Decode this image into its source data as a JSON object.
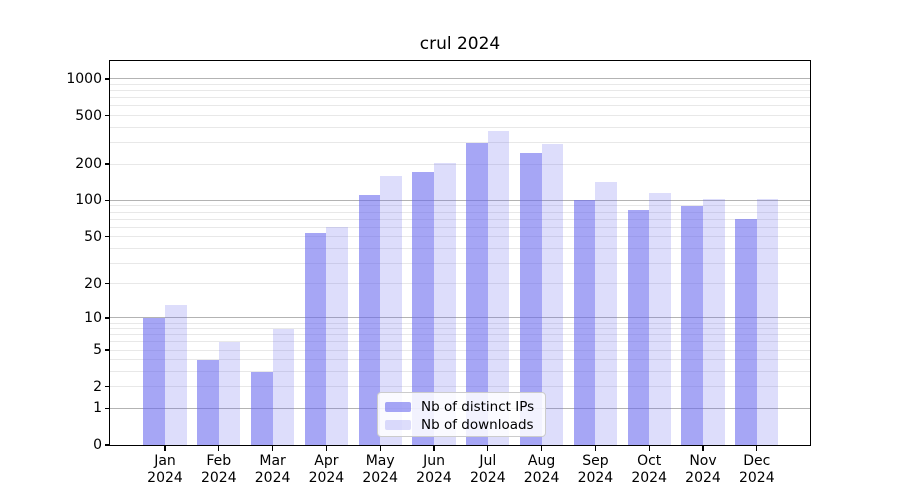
{
  "chart_data": {
    "type": "bar",
    "title": "crul 2024",
    "year": "2024",
    "categories": [
      "Jan",
      "Feb",
      "Mar",
      "Apr",
      "May",
      "Jun",
      "Jul",
      "Aug",
      "Sep",
      "Oct",
      "Nov",
      "Dec"
    ],
    "series": [
      {
        "name": "Nb of distinct IPs",
        "color": "rgba(102,102,238,0.58)",
        "values": [
          10,
          4,
          3,
          54,
          112,
          173,
          300,
          248,
          100,
          84,
          90,
          70
        ]
      },
      {
        "name": "Nb of downloads",
        "color": "rgba(102,102,238,0.22)",
        "values": [
          13,
          6,
          8,
          60,
          160,
          204,
          373,
          294,
          142,
          116,
          103,
          103
        ]
      }
    ],
    "y_ticks": [
      0,
      1,
      2,
      5,
      10,
      20,
      50,
      100,
      200,
      500,
      1000
    ],
    "y_scale": "log10(value+1)",
    "ylim": [
      0,
      1400
    ],
    "grid": true,
    "legend_position": "lower-center",
    "colors": {
      "grid_major": "#b3b3b3",
      "grid_minor": "#e8e8e8",
      "axis": "#000000",
      "background": "#ffffff"
    }
  }
}
